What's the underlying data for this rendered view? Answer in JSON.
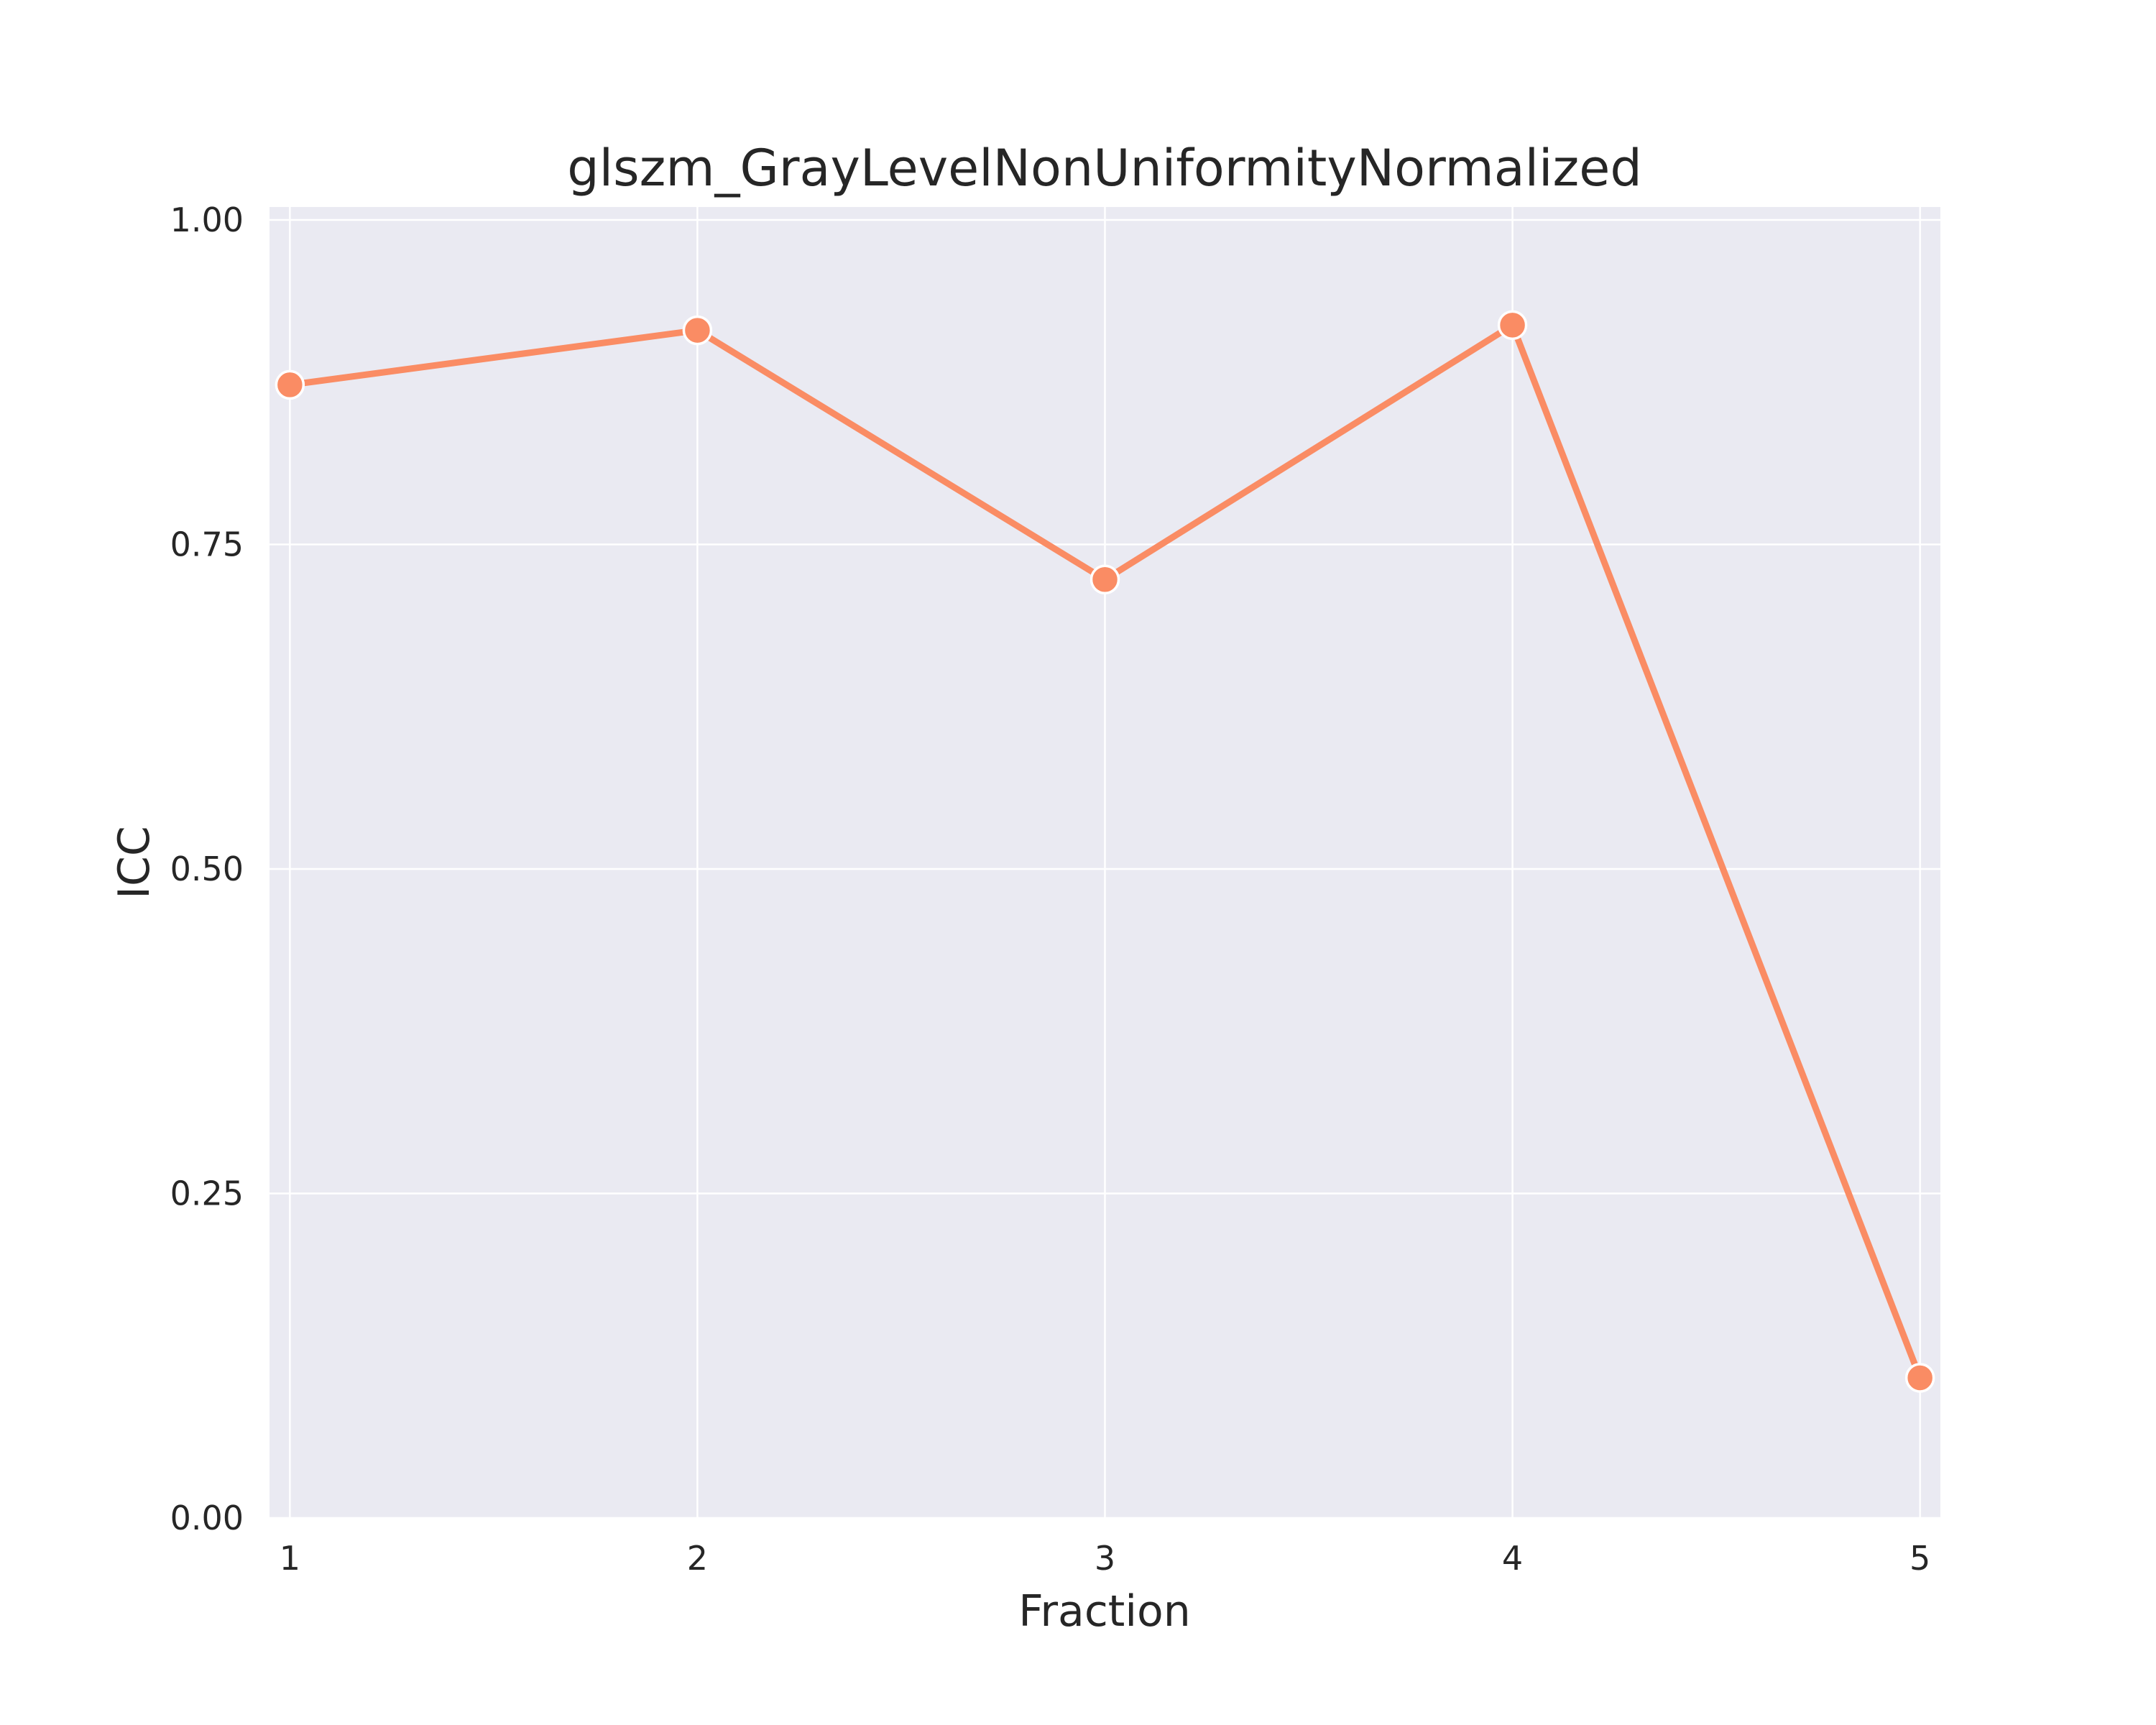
{
  "chart_data": {
    "type": "line",
    "title": "glszm_GrayLevelNonUniformityNormalized",
    "xlabel": "Fraction",
    "ylabel": "ICC",
    "x": [
      1,
      2,
      3,
      4,
      5
    ],
    "x_tick_labels": [
      "1",
      "2",
      "3",
      "4",
      "5"
    ],
    "y_ticks": [
      0.0,
      0.25,
      0.5,
      0.75,
      1.0
    ],
    "y_tick_labels": [
      "0.00",
      "0.25",
      "0.50",
      "0.75",
      "1.00"
    ],
    "xlim": [
      0.95,
      5.05
    ],
    "ylim": [
      0.0,
      1.01
    ],
    "grid": true,
    "series": [
      {
        "values": [
          0.873,
          0.915,
          0.723,
          0.919,
          0.108
        ],
        "color": "#fa8c64"
      }
    ]
  },
  "style": {
    "plot_background": "#eaeaf2",
    "grid_color": "#ffffff",
    "marker_edge_color": "#ffffff"
  }
}
